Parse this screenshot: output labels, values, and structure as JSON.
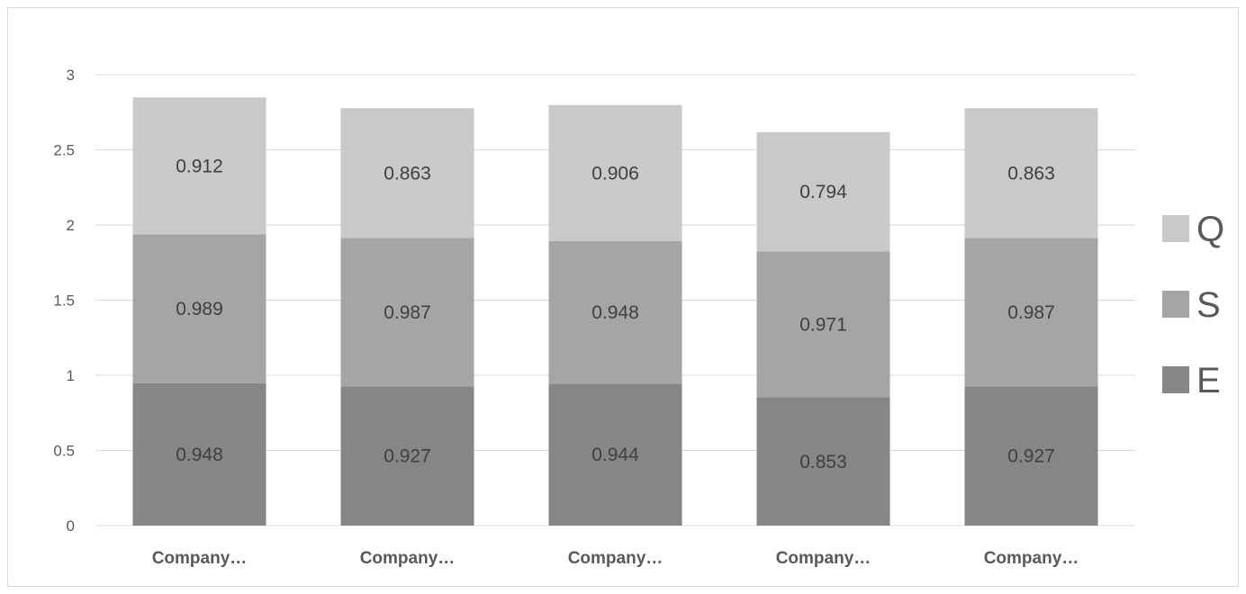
{
  "chart_data": {
    "type": "bar",
    "stacked": true,
    "categories": [
      "Company…",
      "Company…",
      "Company…",
      "Company…",
      "Company…"
    ],
    "series": [
      {
        "name": "E",
        "color": "#868686",
        "values": [
          0.948,
          0.927,
          0.944,
          0.853,
          0.927
        ]
      },
      {
        "name": "S",
        "color": "#a5a5a5",
        "values": [
          0.989,
          0.987,
          0.948,
          0.971,
          0.987
        ]
      },
      {
        "name": "Q",
        "color": "#c9c9c9",
        "values": [
          0.912,
          0.863,
          0.906,
          0.794,
          0.863
        ]
      }
    ],
    "ylim": [
      0,
      3
    ],
    "yticks": [
      "0",
      "0.5",
      "1",
      "1.5",
      "2",
      "2.5",
      "3"
    ],
    "grid": true,
    "gridColor": "#d9d9d9",
    "legend": {
      "position": "right",
      "order": [
        "Q",
        "S",
        "E"
      ]
    },
    "title": "",
    "xlabel": "",
    "ylabel": ""
  }
}
